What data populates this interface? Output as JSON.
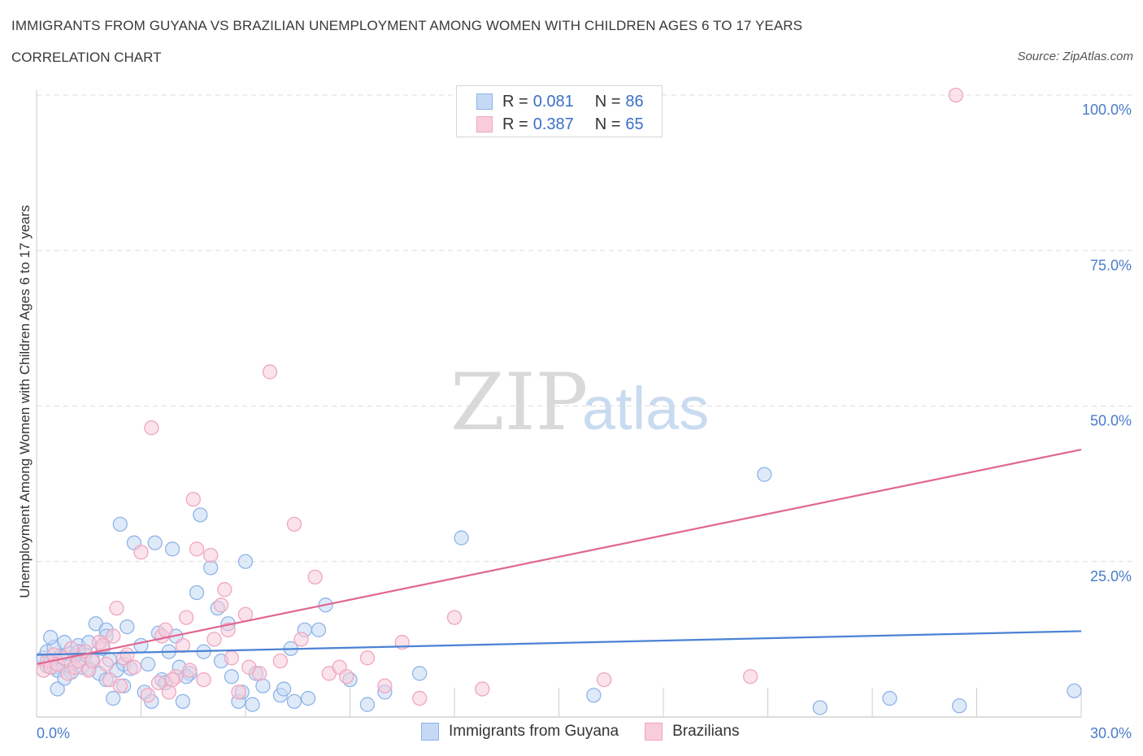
{
  "header": {
    "title": "IMMIGRANTS FROM GUYANA VS BRAZILIAN UNEMPLOYMENT AMONG WOMEN WITH CHILDREN AGES 6 TO 17 YEARS",
    "subtitle": "CORRELATION CHART",
    "source": "Source: ZipAtlas.com"
  },
  "watermark": {
    "zip": "ZIP",
    "atlas": "atlas"
  },
  "legend": {
    "rows": [
      {
        "r_label": "R = ",
        "r_value": "0.081",
        "n_label": "N = ",
        "n_value": "86",
        "color": "#8fb4e8",
        "fill": "#c5d8f4"
      },
      {
        "r_label": "R = ",
        "r_value": "0.387",
        "n_label": "N = ",
        "n_value": "65",
        "color": "#f0a6bf",
        "fill": "#f8ccdb"
      }
    ]
  },
  "bottom_legend": {
    "items": [
      {
        "label": "Immigrants from Guyana",
        "color": "#8fb4e8",
        "fill": "#c5d8f4"
      },
      {
        "label": "Brazilians",
        "color": "#f0a6bf",
        "fill": "#f8ccdb"
      }
    ]
  },
  "chart_data": {
    "type": "scatter",
    "title": "IMMIGRANTS FROM GUYANA VS BRAZILIAN UNEMPLOYMENT AMONG WOMEN WITH CHILDREN AGES 6 TO 17 YEARS",
    "ylabel": "Unemployment Among Women with Children Ages 6 to 17 years",
    "xlabel": "",
    "xlim": [
      0,
      30
    ],
    "ylim": [
      0,
      100
    ],
    "x_tick_labels": [
      "0.0%",
      "30.0%"
    ],
    "y_ticks": [
      25,
      50,
      75,
      100
    ],
    "y_tick_labels": [
      "25.0%",
      "50.0%",
      "75.0%",
      "100.0%"
    ],
    "grid": "horizontal dashed",
    "legend_position": "top-center",
    "series": [
      {
        "name": "Immigrants from Guyana",
        "color": "#4a82d4",
        "marker_fill": "#c5d8f4",
        "marker_stroke": "#8fb4e8",
        "trend": {
          "x": [
            0,
            30
          ],
          "y": [
            10.0,
            13.8
          ]
        },
        "points": [
          [
            0.2,
            9.5
          ],
          [
            0.3,
            10.5
          ],
          [
            0.3,
            8.2
          ],
          [
            0.4,
            9.0
          ],
          [
            0.5,
            11.2
          ],
          [
            0.5,
            8.0
          ],
          [
            0.6,
            7.5
          ],
          [
            0.7,
            9.8
          ],
          [
            0.8,
            12.0
          ],
          [
            0.9,
            10.2
          ],
          [
            1.0,
            8.5
          ],
          [
            1.0,
            7.2
          ],
          [
            1.1,
            9.9
          ],
          [
            1.2,
            11.5
          ],
          [
            1.3,
            8.0
          ],
          [
            1.4,
            10.0
          ],
          [
            1.5,
            7.8
          ],
          [
            1.6,
            9.3
          ],
          [
            1.7,
            15.0
          ],
          [
            1.8,
            7.0
          ],
          [
            1.9,
            11.0
          ],
          [
            2.0,
            14.0
          ],
          [
            2.0,
            6.0
          ],
          [
            2.1,
            9.2
          ],
          [
            2.2,
            3.0
          ],
          [
            2.3,
            7.5
          ],
          [
            2.4,
            31.0
          ],
          [
            2.5,
            8.5
          ],
          [
            2.5,
            5.0
          ],
          [
            2.6,
            14.5
          ],
          [
            2.7,
            7.8
          ],
          [
            2.8,
            28.0
          ],
          [
            3.0,
            11.5
          ],
          [
            3.1,
            4.0
          ],
          [
            3.2,
            8.5
          ],
          [
            3.3,
            2.5
          ],
          [
            3.4,
            28.0
          ],
          [
            3.5,
            13.5
          ],
          [
            3.6,
            6.0
          ],
          [
            3.8,
            10.5
          ],
          [
            3.9,
            27.0
          ],
          [
            4.0,
            13.0
          ],
          [
            4.1,
            8.0
          ],
          [
            4.2,
            2.5
          ],
          [
            4.4,
            7.0
          ],
          [
            4.6,
            20.0
          ],
          [
            4.7,
            32.5
          ],
          [
            4.8,
            10.5
          ],
          [
            5.0,
            24.0
          ],
          [
            5.2,
            17.5
          ],
          [
            5.3,
            9.0
          ],
          [
            5.5,
            15.0
          ],
          [
            5.6,
            6.5
          ],
          [
            5.8,
            2.5
          ],
          [
            6.0,
            25.0
          ],
          [
            6.2,
            2.0
          ],
          [
            6.3,
            7.0
          ],
          [
            6.5,
            5.0
          ],
          [
            7.0,
            3.5
          ],
          [
            7.1,
            4.5
          ],
          [
            7.3,
            11.0
          ],
          [
            7.4,
            2.5
          ],
          [
            7.7,
            14.0
          ],
          [
            7.8,
            3.0
          ],
          [
            8.1,
            14.0
          ],
          [
            8.3,
            18.0
          ],
          [
            9.0,
            6.0
          ],
          [
            9.5,
            2.0
          ],
          [
            10.0,
            4.0
          ],
          [
            11.0,
            7.0
          ],
          [
            12.2,
            28.8
          ],
          [
            16.0,
            3.5
          ],
          [
            20.9,
            39.0
          ],
          [
            22.5,
            1.5
          ],
          [
            24.5,
            3.0
          ],
          [
            26.5,
            1.8
          ],
          [
            29.8,
            4.2
          ],
          [
            0.6,
            4.5
          ],
          [
            0.8,
            6.2
          ],
          [
            1.5,
            12.0
          ],
          [
            2.0,
            13.0
          ],
          [
            4.3,
            6.5
          ],
          [
            5.9,
            4.0
          ],
          [
            3.7,
            5.5
          ],
          [
            0.4,
            12.8
          ],
          [
            1.2,
            10.5
          ]
        ]
      },
      {
        "name": "Brazilians",
        "color": "#e0678f",
        "marker_fill": "#f8ccdb",
        "marker_stroke": "#f0a6bf",
        "trend": {
          "x": [
            0,
            30
          ],
          "y": [
            8.5,
            43.0
          ]
        },
        "points": [
          [
            0.2,
            7.5
          ],
          [
            0.3,
            9.0
          ],
          [
            0.4,
            8.0
          ],
          [
            0.5,
            10.0
          ],
          [
            0.6,
            8.5
          ],
          [
            0.8,
            9.5
          ],
          [
            0.9,
            7.0
          ],
          [
            1.0,
            11.0
          ],
          [
            1.1,
            8.0
          ],
          [
            1.2,
            9.0
          ],
          [
            1.4,
            10.5
          ],
          [
            1.5,
            7.5
          ],
          [
            1.6,
            9.0
          ],
          [
            1.8,
            12.0
          ],
          [
            1.9,
            11.5
          ],
          [
            2.0,
            8.5
          ],
          [
            2.1,
            6.0
          ],
          [
            2.2,
            13.0
          ],
          [
            2.3,
            17.5
          ],
          [
            2.4,
            5.0
          ],
          [
            2.5,
            9.5
          ],
          [
            2.6,
            10.0
          ],
          [
            2.8,
            8.0
          ],
          [
            3.0,
            26.5
          ],
          [
            3.2,
            3.5
          ],
          [
            3.3,
            46.5
          ],
          [
            3.5,
            5.5
          ],
          [
            3.6,
            13.0
          ],
          [
            3.7,
            14.0
          ],
          [
            3.8,
            4.0
          ],
          [
            4.0,
            6.5
          ],
          [
            4.2,
            11.5
          ],
          [
            4.3,
            16.0
          ],
          [
            4.4,
            7.5
          ],
          [
            4.5,
            35.0
          ],
          [
            4.6,
            27.0
          ],
          [
            4.8,
            6.0
          ],
          [
            5.0,
            26.0
          ],
          [
            5.1,
            12.5
          ],
          [
            5.3,
            18.0
          ],
          [
            5.4,
            20.5
          ],
          [
            5.5,
            14.0
          ],
          [
            5.6,
            9.5
          ],
          [
            5.8,
            4.0
          ],
          [
            6.0,
            16.5
          ],
          [
            6.1,
            8.0
          ],
          [
            6.4,
            7.0
          ],
          [
            6.7,
            55.5
          ],
          [
            7.0,
            9.0
          ],
          [
            7.4,
            31.0
          ],
          [
            7.6,
            12.5
          ],
          [
            8.0,
            22.5
          ],
          [
            8.4,
            7.0
          ],
          [
            8.7,
            8.0
          ],
          [
            8.9,
            6.5
          ],
          [
            9.5,
            9.5
          ],
          [
            10.0,
            5.0
          ],
          [
            10.5,
            12.0
          ],
          [
            11.0,
            3.0
          ],
          [
            12.0,
            16.0
          ],
          [
            12.8,
            4.5
          ],
          [
            16.3,
            6.0
          ],
          [
            20.5,
            6.5
          ],
          [
            26.4,
            100.0
          ],
          [
            3.9,
            6.0
          ]
        ]
      }
    ]
  }
}
